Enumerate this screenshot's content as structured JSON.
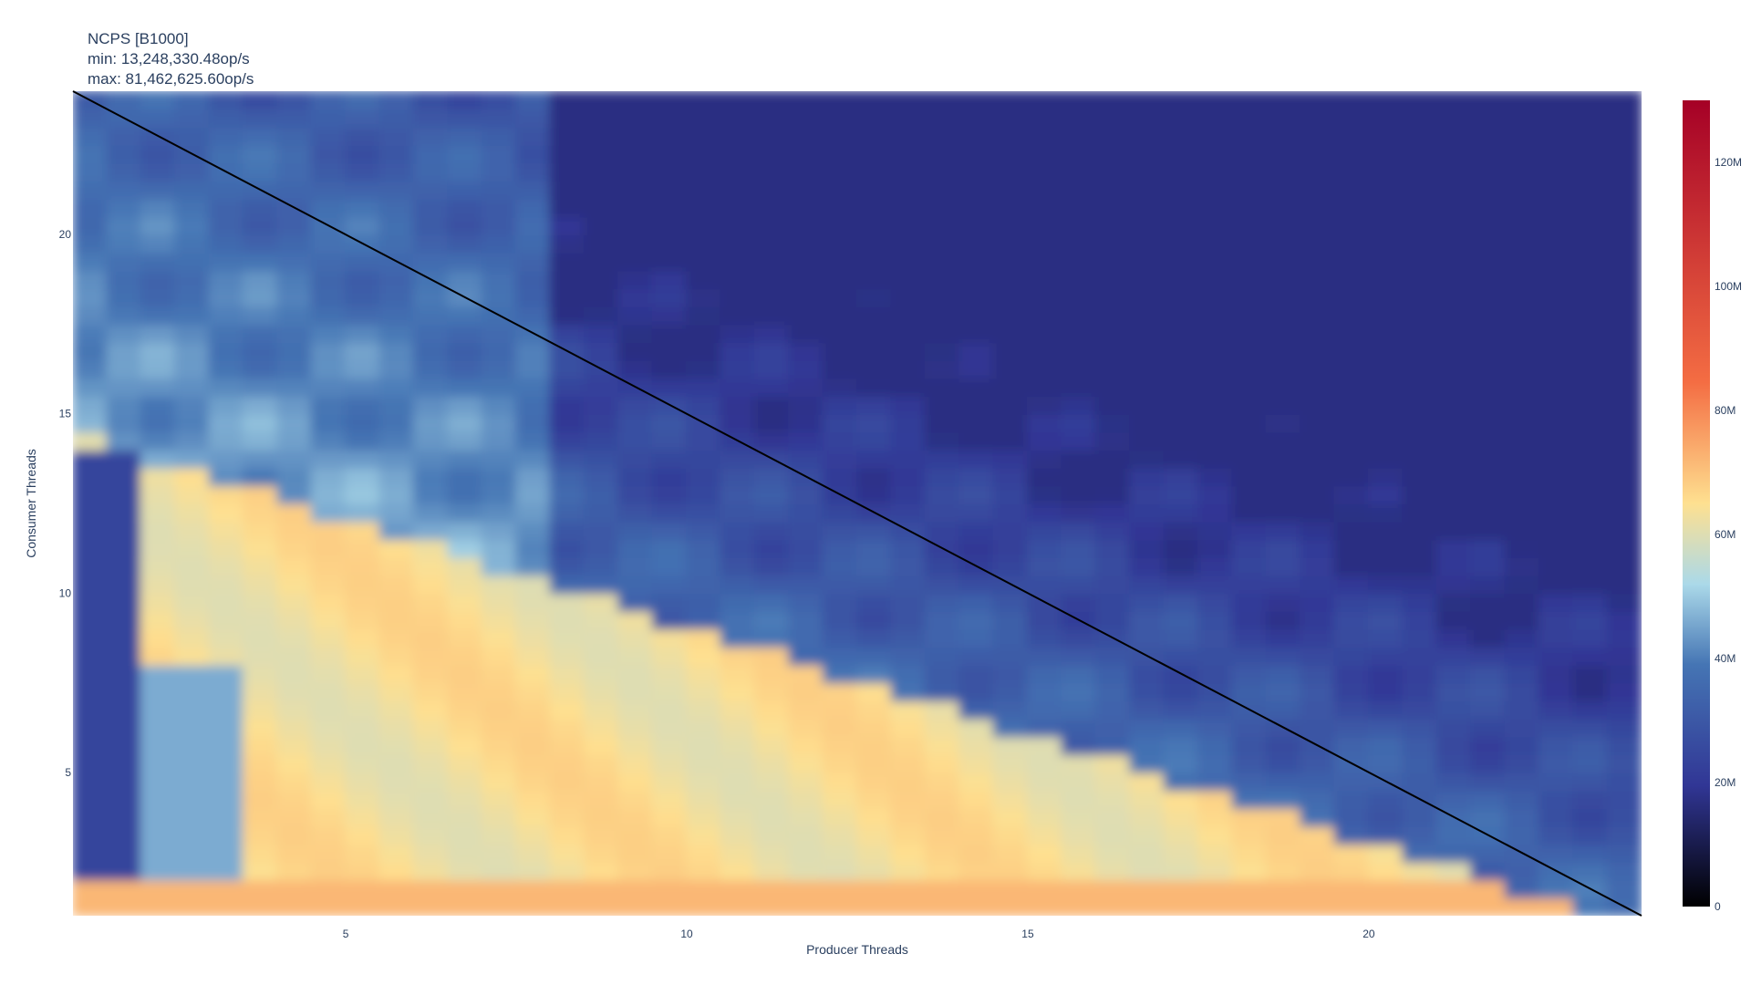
{
  "chart_data": {
    "type": "heatmap",
    "title": "NCPS [B1000]",
    "subtitle_min": "min: 13,248,330.48op/s",
    "subtitle_max": "max: 81,462,625.60op/s",
    "xlabel": "Producer Threads",
    "ylabel": "Consumer Threads",
    "x": [
      1,
      24
    ],
    "y": [
      1,
      24
    ],
    "xlim": [
      1,
      24
    ],
    "ylim": [
      1,
      24
    ],
    "x_ticks": [
      5,
      10,
      15,
      20
    ],
    "y_ticks": [
      5,
      10,
      15,
      20
    ],
    "colorbar": {
      "range": [
        0,
        130000000
      ],
      "ticks": [
        0,
        20000000,
        40000000,
        60000000,
        80000000,
        100000000,
        120000000
      ],
      "tick_labels": [
        "0",
        "20M",
        "40M",
        "60M",
        "80M",
        "100M",
        "120M"
      ],
      "colorscale": [
        "#000000",
        "#313695",
        "#4575b4",
        "#abd9e9",
        "#fee090",
        "#f46d43",
        "#a50026"
      ]
    },
    "diagonal_line": {
      "from": [
        1,
        24
      ],
      "to": [
        24,
        1
      ],
      "color": "#000000"
    },
    "regions": [
      {
        "name": "low-consumer-band",
        "y_range": [
          1,
          2
        ],
        "value": 72000000
      },
      {
        "name": "upper-right",
        "value": 25000000
      },
      {
        "name": "lower-middle",
        "value": 65000000
      },
      {
        "name": "left-middle",
        "value": 45000000
      }
    ],
    "grid": false,
    "colors": {
      "axis_text": "#2a3f5f",
      "line": "#000000"
    }
  }
}
